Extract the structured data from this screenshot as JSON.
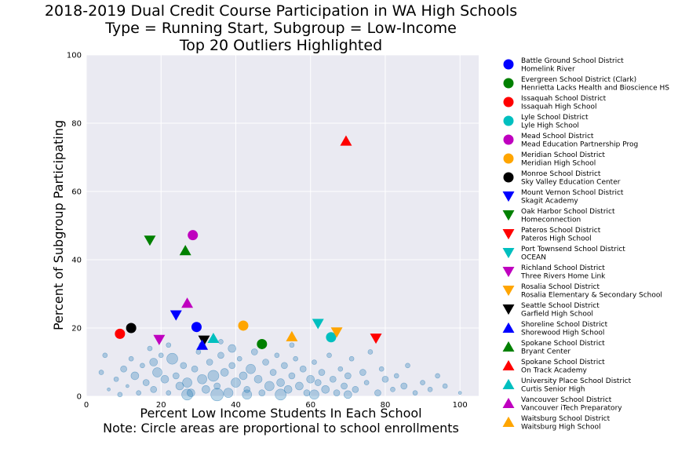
{
  "chart_data": {
    "type": "scatter",
    "title_lines": [
      "2018-2019 Dual Credit Course Participation in WA High Schools",
      "Type = Running Start, Subgroup = Low-Income",
      "Top 20 Outliers Highlighted"
    ],
    "xlabel_lines": [
      "Percent Low Income Students In Each School",
      "Note: Circle areas are proportional to school enrollments"
    ],
    "ylabel": "Percent of Subgroup Participating",
    "xlim": [
      0,
      105
    ],
    "ylim": [
      0,
      100
    ],
    "xticks": [
      "0",
      "20",
      "40",
      "60",
      "80",
      "100"
    ],
    "xtick_values": [
      0,
      20,
      40,
      60,
      80,
      100
    ],
    "yticks": [
      "0",
      "20",
      "40",
      "60",
      "80",
      "100"
    ],
    "ytick_values": [
      0,
      20,
      40,
      60,
      80,
      100
    ],
    "grid": true,
    "legend_placement": "outside-right",
    "background_color": "#eaeaf2",
    "background_series_color": "#1f77b4",
    "background_points": [
      {
        "x": 4,
        "y": 7,
        "s": 3
      },
      {
        "x": 5,
        "y": 12,
        "s": 3
      },
      {
        "x": 6,
        "y": 2,
        "s": 2
      },
      {
        "x": 8,
        "y": 5,
        "s": 3
      },
      {
        "x": 10,
        "y": 8,
        "s": 4
      },
      {
        "x": 11,
        "y": 3,
        "s": 2
      },
      {
        "x": 12,
        "y": 11,
        "s": 3
      },
      {
        "x": 13,
        "y": 6,
        "s": 5
      },
      {
        "x": 14,
        "y": 1,
        "s": 3
      },
      {
        "x": 15,
        "y": 9,
        "s": 3
      },
      {
        "x": 16,
        "y": 4,
        "s": 4
      },
      {
        "x": 17,
        "y": 14,
        "s": 3
      },
      {
        "x": 18,
        "y": 2,
        "s": 4
      },
      {
        "x": 19,
        "y": 7,
        "s": 6
      },
      {
        "x": 20,
        "y": 12,
        "s": 3
      },
      {
        "x": 21,
        "y": 5,
        "s": 5
      },
      {
        "x": 22,
        "y": 1,
        "s": 3
      },
      {
        "x": 23,
        "y": 11,
        "s": 7
      },
      {
        "x": 24,
        "y": 6,
        "s": 4
      },
      {
        "x": 25,
        "y": 3,
        "s": 5
      },
      {
        "x": 26,
        "y": 9,
        "s": 4
      },
      {
        "x": 27,
        "y": 4,
        "s": 6
      },
      {
        "x": 28,
        "y": 1,
        "s": 5
      },
      {
        "x": 29,
        "y": 8,
        "s": 4
      },
      {
        "x": 30,
        "y": 13,
        "s": 3
      },
      {
        "x": 31,
        "y": 5,
        "s": 6
      },
      {
        "x": 32,
        "y": 2,
        "s": 5
      },
      {
        "x": 33,
        "y": 10,
        "s": 4
      },
      {
        "x": 34,
        "y": 6,
        "s": 7
      },
      {
        "x": 35,
        "y": 3,
        "s": 4
      },
      {
        "x": 36,
        "y": 12,
        "s": 4
      },
      {
        "x": 37,
        "y": 7,
        "s": 5
      },
      {
        "x": 38,
        "y": 1,
        "s": 6
      },
      {
        "x": 39,
        "y": 9,
        "s": 4
      },
      {
        "x": 40,
        "y": 4,
        "s": 6
      },
      {
        "x": 41,
        "y": 11,
        "s": 3
      },
      {
        "x": 42,
        "y": 6,
        "s": 5
      },
      {
        "x": 43,
        "y": 2,
        "s": 4
      },
      {
        "x": 44,
        "y": 8,
        "s": 6
      },
      {
        "x": 45,
        "y": 13,
        "s": 4
      },
      {
        "x": 46,
        "y": 5,
        "s": 5
      },
      {
        "x": 47,
        "y": 1,
        "s": 4
      },
      {
        "x": 48,
        "y": 10,
        "s": 4
      },
      {
        "x": 49,
        "y": 3,
        "s": 6
      },
      {
        "x": 50,
        "y": 7,
        "s": 4
      },
      {
        "x": 51,
        "y": 12,
        "s": 3
      },
      {
        "x": 52,
        "y": 4,
        "s": 5
      },
      {
        "x": 53,
        "y": 9,
        "s": 4
      },
      {
        "x": 54,
        "y": 2,
        "s": 5
      },
      {
        "x": 55,
        "y": 6,
        "s": 4
      },
      {
        "x": 56,
        "y": 11,
        "s": 3
      },
      {
        "x": 57,
        "y": 3,
        "s": 5
      },
      {
        "x": 58,
        "y": 8,
        "s": 4
      },
      {
        "x": 59,
        "y": 1,
        "s": 4
      },
      {
        "x": 60,
        "y": 5,
        "s": 5
      },
      {
        "x": 61,
        "y": 10,
        "s": 3
      },
      {
        "x": 62,
        "y": 4,
        "s": 4
      },
      {
        "x": 63,
        "y": 7,
        "s": 4
      },
      {
        "x": 64,
        "y": 2,
        "s": 5
      },
      {
        "x": 65,
        "y": 12,
        "s": 3
      },
      {
        "x": 66,
        "y": 5,
        "s": 4
      },
      {
        "x": 67,
        "y": 1,
        "s": 4
      },
      {
        "x": 68,
        "y": 8,
        "s": 3
      },
      {
        "x": 69,
        "y": 3,
        "s": 4
      },
      {
        "x": 70,
        "y": 6,
        "s": 4
      },
      {
        "x": 71,
        "y": 11,
        "s": 3
      },
      {
        "x": 72,
        "y": 2,
        "s": 4
      },
      {
        "x": 74,
        "y": 7,
        "s": 4
      },
      {
        "x": 75,
        "y": 4,
        "s": 3
      },
      {
        "x": 76,
        "y": 13,
        "s": 3
      },
      {
        "x": 78,
        "y": 1,
        "s": 4
      },
      {
        "x": 79,
        "y": 8,
        "s": 3
      },
      {
        "x": 80,
        "y": 5,
        "s": 4
      },
      {
        "x": 82,
        "y": 2,
        "s": 3
      },
      {
        "x": 83,
        "y": 6,
        "s": 3
      },
      {
        "x": 85,
        "y": 3,
        "s": 4
      },
      {
        "x": 86,
        "y": 9,
        "s": 3
      },
      {
        "x": 88,
        "y": 1,
        "s": 3
      },
      {
        "x": 90,
        "y": 4,
        "s": 3
      },
      {
        "x": 92,
        "y": 2,
        "s": 3
      },
      {
        "x": 94,
        "y": 6,
        "s": 3
      },
      {
        "x": 96,
        "y": 3,
        "s": 3
      },
      {
        "x": 100,
        "y": 1,
        "s": 2
      },
      {
        "x": 9,
        "y": 0.5,
        "s": 3
      },
      {
        "x": 27,
        "y": 0.5,
        "s": 7
      },
      {
        "x": 35,
        "y": 0.5,
        "s": 8
      },
      {
        "x": 43,
        "y": 0.5,
        "s": 6
      },
      {
        "x": 52,
        "y": 0.5,
        "s": 7
      },
      {
        "x": 61,
        "y": 0.5,
        "s": 6
      },
      {
        "x": 70,
        "y": 0.5,
        "s": 5
      },
      {
        "x": 31,
        "y": 15,
        "s": 4
      },
      {
        "x": 36,
        "y": 16,
        "s": 3
      },
      {
        "x": 55,
        "y": 15,
        "s": 3
      },
      {
        "x": 22,
        "y": 15,
        "s": 3
      },
      {
        "x": 18,
        "y": 10,
        "s": 5
      },
      {
        "x": 39,
        "y": 14,
        "s": 5
      }
    ],
    "series": [
      {
        "name": "Battle Ground School District\nHomelink River",
        "marker": "circle",
        "color": "#0000ff",
        "x": 29.5,
        "y": 20.3
      },
      {
        "name": "Evergreen School District (Clark)\nHenrietta Lacks Health and Bioscience HS",
        "marker": "circle",
        "color": "#008000",
        "x": 47.0,
        "y": 15.3
      },
      {
        "name": "Issaquah School District\nIssaquah High School",
        "marker": "circle",
        "color": "#ff0000",
        "x": 9.0,
        "y": 18.3
      },
      {
        "name": "Lyle School District\nLyle High School",
        "marker": "circle",
        "color": "#00bfbf",
        "x": 65.5,
        "y": 17.3
      },
      {
        "name": "Mead School District\nMead Education Partnership Prog",
        "marker": "circle",
        "color": "#bf00bf",
        "x": 28.5,
        "y": 47.2
      },
      {
        "name": "Meridian School District\nMeridian High School",
        "marker": "circle",
        "color": "#ffa500",
        "x": 42.0,
        "y": 20.7
      },
      {
        "name": "Monroe School District\nSky Valley Education Center",
        "marker": "circle",
        "color": "#000000",
        "x": 12.0,
        "y": 20.0
      },
      {
        "name": "Mount Vernon School District\nSkagit Academy",
        "marker": "triangle-down",
        "color": "#0000ff",
        "x": 24.0,
        "y": 23.8
      },
      {
        "name": "Oak Harbor School District\nHomeconnection",
        "marker": "triangle-down",
        "color": "#008000",
        "x": 17.0,
        "y": 45.7
      },
      {
        "name": "Pateros School District\nPateros High School",
        "marker": "triangle-down",
        "color": "#ff0000",
        "x": 77.5,
        "y": 17.0
      },
      {
        "name": "Port Townsend School District\nOCEAN",
        "marker": "triangle-down",
        "color": "#00bfbf",
        "x": 62.0,
        "y": 21.3
      },
      {
        "name": "Richland School District\nThree Rivers Home Link",
        "marker": "triangle-down",
        "color": "#bf00bf",
        "x": 19.5,
        "y": 16.6
      },
      {
        "name": "Rosalia School District\nRosalia Elementary & Secondary School",
        "marker": "triangle-down",
        "color": "#ffa500",
        "x": 67.0,
        "y": 18.8
      },
      {
        "name": "Seattle School District\nGarfield High School",
        "marker": "triangle-down",
        "color": "#000000",
        "x": 31.5,
        "y": 16.4
      },
      {
        "name": "Shoreline School District\nShorewood High School",
        "marker": "triangle-up",
        "color": "#0000ff",
        "x": 31.0,
        "y": 15.0
      },
      {
        "name": "Spokane School District\nBryant Center",
        "marker": "triangle-up",
        "color": "#008000",
        "x": 26.5,
        "y": 42.7
      },
      {
        "name": "Spokane School District\nOn Track Academy",
        "marker": "triangle-up",
        "color": "#ff0000",
        "x": 69.5,
        "y": 74.8
      },
      {
        "name": "University Place School District\nCurtis Senior High",
        "marker": "triangle-up",
        "color": "#00bfbf",
        "x": 34.0,
        "y": 17.0
      },
      {
        "name": "Vancouver School District\nVancouver iTech Preparatory",
        "marker": "triangle-up",
        "color": "#bf00bf",
        "x": 27.0,
        "y": 27.3
      },
      {
        "name": "Waitsburg School District\nWaitsburg High School",
        "marker": "triangle-up",
        "color": "#ffa500",
        "x": 55.0,
        "y": 17.5
      }
    ]
  }
}
